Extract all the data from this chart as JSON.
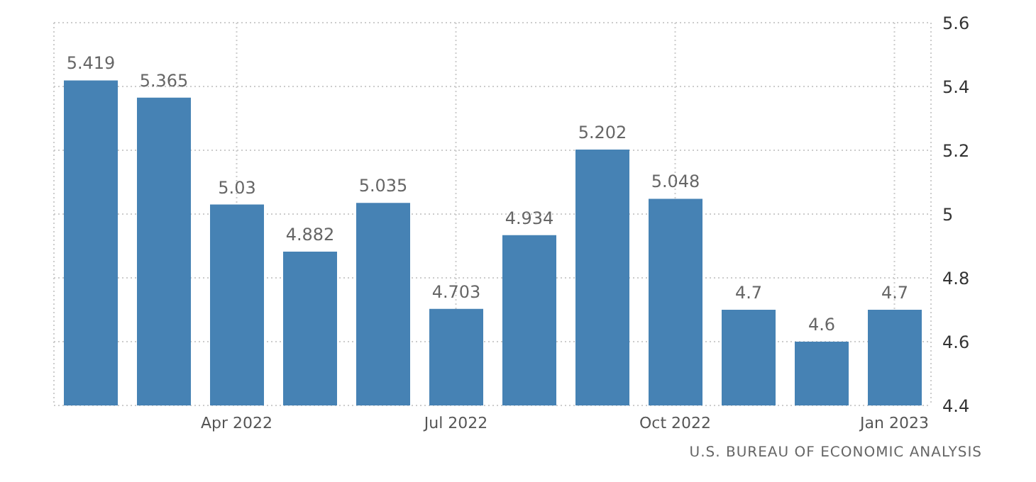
{
  "chart_data": {
    "type": "bar",
    "categories": [
      null,
      null,
      "Apr 2022",
      null,
      null,
      "Jul 2022",
      null,
      null,
      "Oct 2022",
      null,
      null,
      "Jan 2023"
    ],
    "values": [
      5.419,
      5.365,
      5.03,
      4.882,
      5.035,
      4.703,
      4.934,
      5.202,
      5.048,
      4.7,
      4.6,
      4.7
    ],
    "color": "#4682b4",
    "ylim": [
      4.4,
      5.6
    ],
    "yticks": [
      4.4,
      4.6,
      4.8,
      5,
      5.2,
      5.4,
      5.6
    ],
    "grid": true,
    "data_labels": true,
    "annotations": [
      "U.S. BUREAU OF ECONOMIC ANALYSIS"
    ]
  }
}
